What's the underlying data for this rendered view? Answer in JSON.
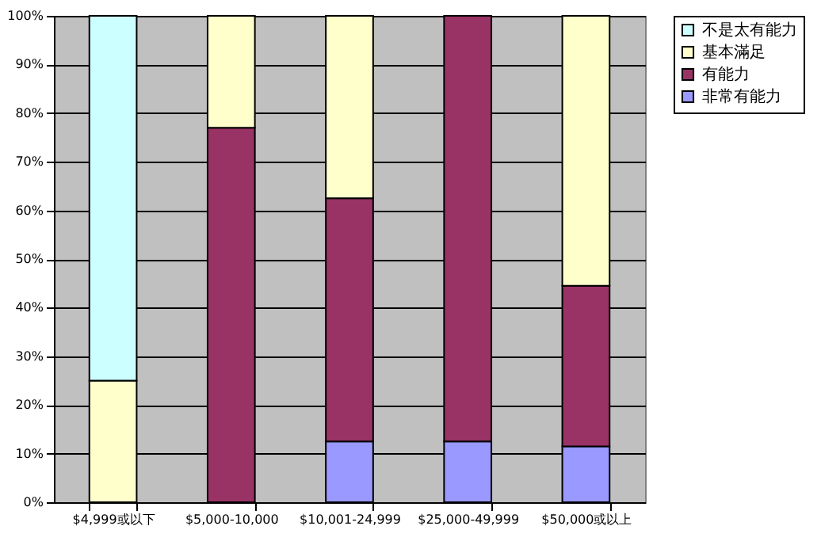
{
  "chart_data": {
    "type": "bar",
    "stacked": true,
    "categories": [
      "$4,999或以下",
      "$5,000-10,000",
      "$10,001-24,999",
      "$25,000-49,999",
      "$50,000或以上"
    ],
    "series": [
      {
        "name": "非常有能力",
        "color": "#9999ff",
        "values": [
          0,
          0,
          12.5,
          12.5,
          11.5
        ]
      },
      {
        "name": "有能力",
        "color": "#993366",
        "values": [
          0,
          77,
          50,
          87.5,
          33
        ]
      },
      {
        "name": "基本滿足",
        "color": "#ffffcc",
        "values": [
          25,
          23,
          37.5,
          0,
          55.5
        ]
      },
      {
        "name": "不是太有能力",
        "color": "#ccffff",
        "values": [
          75,
          0,
          0,
          0,
          0
        ]
      }
    ],
    "ylim": [
      0,
      100
    ],
    "yticks": [
      {
        "value": 0,
        "label": "0%"
      },
      {
        "value": 10,
        "label": "10%"
      },
      {
        "value": 20,
        "label": "20%"
      },
      {
        "value": 30,
        "label": "30%"
      },
      {
        "value": 40,
        "label": "40%"
      },
      {
        "value": 50,
        "label": "50%"
      },
      {
        "value": 60,
        "label": "60%"
      },
      {
        "value": 70,
        "label": "70%"
      },
      {
        "value": 80,
        "label": "80%"
      },
      {
        "value": 90,
        "label": "90%"
      },
      {
        "value": 100,
        "label": "100%"
      }
    ],
    "grid": "y",
    "legend": "right"
  }
}
